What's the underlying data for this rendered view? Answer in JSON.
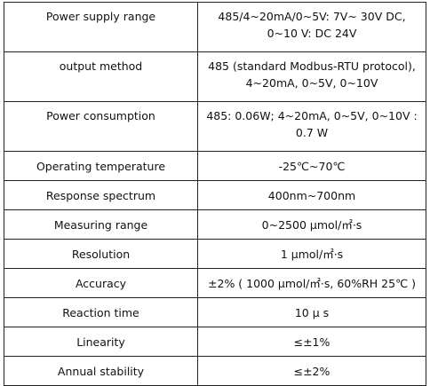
{
  "table": {
    "rows": [
      [
        "Power supply range",
        "485/4~20mA/0~5V: 7V~ 30V DC, 0~10 V: DC 24V"
      ],
      [
        "output method",
        "485 (standard Modbus-RTU protocol), 4~20mA, 0~5V, 0~10V"
      ],
      [
        "Power consumption",
        "485: 0.06W; 4~20mA, 0~5V, 0~10V : 0.7 W"
      ],
      [
        "Operating temperature",
        "-25℃~70℃"
      ],
      [
        "Response spectrum",
        "400nm~700nm"
      ],
      [
        "Measuring range",
        "0~2500 μmol/㎡·s"
      ],
      [
        "Resolution",
        "1 μmol/㎡·s"
      ],
      [
        "Accuracy",
        "±2% ( 1000 μmol/㎡·s, 60%RH 25℃ )"
      ],
      [
        "Reaction time",
        "10 μ s"
      ],
      [
        "Linearity",
        "≤±1%"
      ],
      [
        "Annual stability",
        "≤±2%"
      ]
    ]
  }
}
